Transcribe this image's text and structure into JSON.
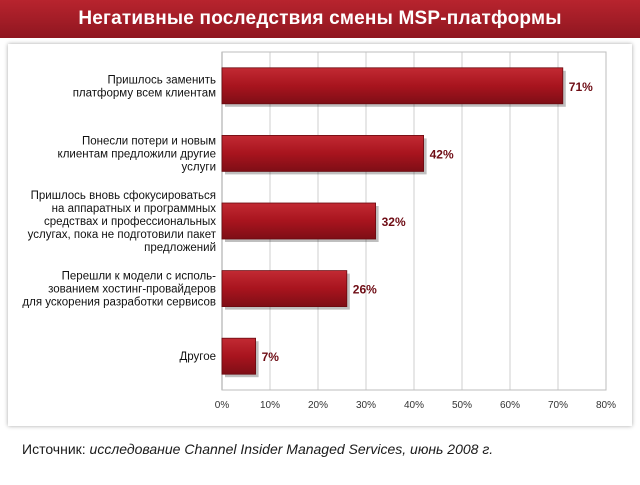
{
  "header": {
    "title": "Негативные последствия смены MSP-платформы"
  },
  "chart_data": {
    "type": "bar",
    "orientation": "horizontal",
    "categories": [
      [
        "Пришлось заменить",
        "платформу всем клиентам"
      ],
      [
        "Понесли потери и новым",
        "клиентам предложили другие",
        "услуги"
      ],
      [
        "Пришлось вновь сфокусироваться",
        "на аппаратных и программных",
        "средствах и профессиональных",
        "услугах, пока не подготовили пакет",
        "предложений"
      ],
      [
        "Перешли к модели с исполь-",
        "зованием хостинг-провайдеров",
        "для ускорения разработки сервисов"
      ],
      [
        "Другое"
      ]
    ],
    "values": [
      71,
      42,
      32,
      26,
      7
    ],
    "value_labels": [
      "71%",
      "42%",
      "32%",
      "26%",
      "7%"
    ],
    "xlim": [
      0,
      80
    ],
    "xticks": [
      0,
      10,
      20,
      30,
      40,
      50,
      60,
      70,
      80
    ],
    "xtick_labels": [
      "0%",
      "10%",
      "20%",
      "30%",
      "40%",
      "50%",
      "60%",
      "70%",
      "80%"
    ],
    "grid": true,
    "bar_color": "#a8141e",
    "accent_color": "#9c1a24"
  },
  "footer": {
    "source_prefix": "Источник: ",
    "source_main": "исследование Channel Insider Managed Services",
    "source_suffix": ", июнь 2008 г."
  }
}
